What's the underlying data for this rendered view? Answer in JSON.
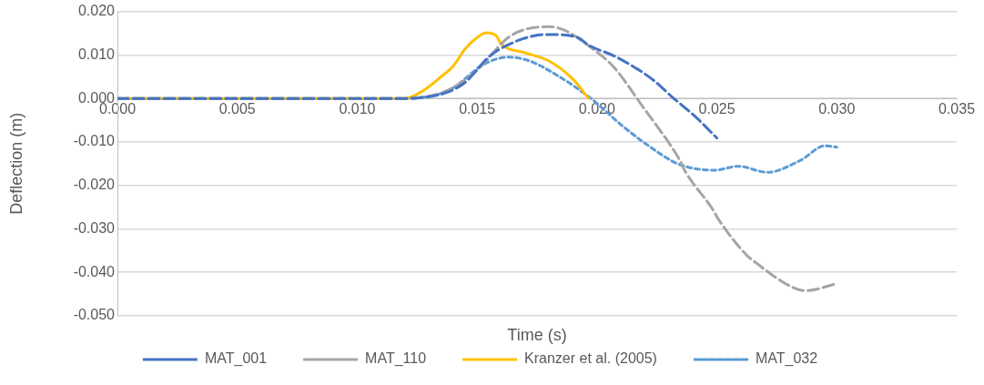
{
  "chart_data": {
    "type": "line",
    "xlabel": "Time (s)",
    "ylabel": "Deflection (m)",
    "xlim": [
      0,
      0.035
    ],
    "xticks": [
      {
        "value": 0,
        "label": "0.000"
      },
      {
        "value": 0.005,
        "label": "0.005"
      },
      {
        "value": 0.01,
        "label": "0.010"
      },
      {
        "value": 0.015,
        "label": "0.015"
      },
      {
        "value": 0.02,
        "label": "0.020"
      },
      {
        "value": 0.025,
        "label": "0.025"
      },
      {
        "value": 0.03,
        "label": "0.030"
      },
      {
        "value": 0.035,
        "label": "0.035"
      }
    ],
    "ylim": [
      -0.05,
      0.02
    ],
    "yticks": [
      {
        "value": -0.05,
        "label": "-0.050"
      },
      {
        "value": -0.04,
        "label": "-0.040"
      },
      {
        "value": -0.03,
        "label": "-0.030"
      },
      {
        "value": -0.02,
        "label": "-0.020"
      },
      {
        "value": -0.01,
        "label": "-0.010"
      },
      {
        "value": 0,
        "label": "0.000"
      },
      {
        "value": 0.01,
        "label": "0.010"
      },
      {
        "value": 0.02,
        "label": "0.020"
      }
    ],
    "grid": "y",
    "legend": "bottom",
    "series": [
      {
        "name": "MAT_001",
        "color": "#4472c4",
        "line_style": "dashed",
        "x": [
          0,
          0.012,
          0.013,
          0.0138,
          0.0145,
          0.01554,
          0.0169,
          0.0179,
          0.0191,
          0.0197,
          0.0207,
          0.0217,
          0.0224,
          0.0231,
          0.0241,
          0.025
        ],
        "values": [
          0,
          0,
          0.0004,
          0.0015,
          0.0037,
          0.0098,
          0.0137,
          0.0147,
          0.0142,
          0.0121,
          0.0098,
          0.0067,
          0.004,
          0.0005,
          -0.0042,
          -0.0091
        ]
      },
      {
        "name": "MAT_110",
        "color": "#a5a5a5",
        "line_style": "dashed",
        "x": [
          0,
          0.012,
          0.013,
          0.014,
          0.015,
          0.0164,
          0.018,
          0.0186,
          0.0197,
          0.0207,
          0.022,
          0.0224,
          0.0234,
          0.0237,
          0.0248,
          0.0251,
          0.0262,
          0.0267,
          0.0281,
          0.0287,
          0.03
        ],
        "values": [
          0,
          0,
          0.0005,
          0.0025,
          0.0065,
          0.0144,
          0.0165,
          0.0158,
          0.0119,
          0.0072,
          -0.0026,
          -0.0056,
          -0.0137,
          -0.017,
          -0.0253,
          -0.0281,
          -0.0358,
          -0.0381,
          -0.0433,
          -0.0442,
          -0.0426
        ]
      },
      {
        "name": "Kranzer et al. (2005)",
        "color": "#ffc000",
        "line_style": "solid",
        "x": [
          0,
          0.012,
          0.0127,
          0.0135,
          0.014,
          0.0145,
          0.015,
          0.01538,
          0.0158,
          0.016,
          0.017,
          0.018,
          0.019,
          0.01965
        ],
        "values": [
          0,
          0,
          0.0016,
          0.005,
          0.0074,
          0.0114,
          0.014,
          0.0151,
          0.0144,
          0.0126,
          0.0105,
          0.0086,
          0.0044,
          0
        ]
      },
      {
        "name": "MAT_032",
        "color": "#5b9bd5",
        "line_style": "dotted",
        "x": [
          0,
          0.012,
          0.013,
          0.0139,
          0.0153,
          0.0163,
          0.0172,
          0.0184,
          0.0197,
          0.0211,
          0.0221,
          0.0234,
          0.0249,
          0.0259,
          0.0271,
          0.0285,
          0.0295,
          0.03
        ],
        "values": [
          0,
          0,
          0.0005,
          0.0021,
          0.0079,
          0.0095,
          0.0086,
          0.0051,
          0.0002,
          -0.0065,
          -0.0107,
          -0.0151,
          -0.0165,
          -0.0156,
          -0.017,
          -0.0142,
          -0.0109,
          -0.0112
        ]
      }
    ]
  }
}
